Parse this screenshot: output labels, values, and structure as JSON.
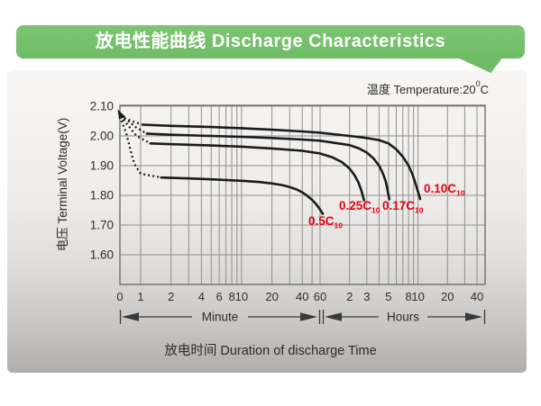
{
  "header": {
    "title": "放电性能曲线 Discharge Characteristics",
    "banner_color": "#70bc66"
  },
  "chart": {
    "temperature_prefix": "温度 Temperature:20",
    "temperature_degree": "0",
    "temperature_unit": "C",
    "y_axis_title": "电压 Terminal Voltage(V)",
    "x_axis_title": "放电时间 Duration of discharge Time",
    "minute_label": "Minute",
    "hours_label": "Hours"
  },
  "chart_data": {
    "type": "line",
    "title": "放电性能曲线 Discharge Characteristics",
    "temperature": "20°C",
    "xlabel": "放电时间 Duration of discharge Time (log time axis: minutes 1-60, then hours 2-40)",
    "ylabel": "电压 Terminal Voltage(V)",
    "y_range": [
      1.5,
      2.1
    ],
    "grid": true,
    "grid_color": "#8f8f8f",
    "border_color": "#6f6f6f",
    "curve_color": "#1b1b1b",
    "label_color": "#e60012",
    "tick_color": "#2f2f2f",
    "y_ticks": [
      {
        "label": "2.10",
        "v": 2.1
      },
      {
        "label": "2.00",
        "v": 2.0
      },
      {
        "label": "1.90",
        "v": 1.9
      },
      {
        "label": "1.80",
        "v": 1.8
      },
      {
        "label": "1.70",
        "v": 1.7
      },
      {
        "label": "1.60",
        "v": 1.6
      }
    ],
    "x_ticks_minutes": [
      {
        "label": "0",
        "t": 0
      },
      {
        "label": "1",
        "t": 1
      },
      {
        "label": "2",
        "t": 2
      },
      {
        "label": "4",
        "t": 4
      },
      {
        "label": "6",
        "t": 6
      },
      {
        "label": "8",
        "t": 8
      },
      {
        "label": "10",
        "t": 10
      },
      {
        "label": "20",
        "t": 20
      },
      {
        "label": "40",
        "t": 40
      },
      {
        "label": "60",
        "t": 60
      }
    ],
    "x_ticks_hours": [
      {
        "label": "2",
        "t": 120
      },
      {
        "label": "3",
        "t": 180
      },
      {
        "label": "5",
        "t": 300
      },
      {
        "label": "8",
        "t": 480
      },
      {
        "label": "10",
        "t": 600
      },
      {
        "label": "20",
        "t": 1200
      },
      {
        "label": "40",
        "t": 2400
      }
    ],
    "x_minor_t": [
      3,
      5,
      7,
      9,
      30,
      50,
      240,
      360,
      420,
      540,
      1800
    ],
    "series": [
      {
        "name": "0.10C10",
        "label_base": "0.10C",
        "label_sub": "10",
        "label_xy": [
          470,
          214
        ],
        "dotted": [
          [
            0,
            2.066
          ],
          [
            0.35,
            2.056
          ],
          [
            0.7,
            2.047
          ],
          [
            1.05,
            2.038
          ]
        ],
        "points": [
          [
            1.05,
            2.038
          ],
          [
            2,
            2.034
          ],
          [
            5,
            2.03
          ],
          [
            10,
            2.026
          ],
          [
            20,
            2.021
          ],
          [
            40,
            2.015
          ],
          [
            60,
            2.011
          ],
          [
            120,
            2.0
          ],
          [
            180,
            1.993
          ],
          [
            240,
            1.986
          ],
          [
            300,
            1.975
          ],
          [
            360,
            1.955
          ],
          [
            420,
            1.93
          ],
          [
            480,
            1.9
          ],
          [
            520,
            1.875
          ],
          [
            560,
            1.845
          ],
          [
            590,
            1.82
          ],
          [
            615,
            1.8
          ],
          [
            630,
            1.788
          ]
        ]
      },
      {
        "name": "0.17C10",
        "label_base": "0.17C",
        "label_sub": "10",
        "label_xy": [
          424,
          233
        ],
        "dotted": [
          [
            0,
            2.066
          ],
          [
            0.4,
            2.05
          ],
          [
            0.8,
            2.028
          ],
          [
            1.15,
            2.008
          ]
        ],
        "points": [
          [
            1.15,
            2.008
          ],
          [
            2,
            2.004
          ],
          [
            5,
            2.0
          ],
          [
            10,
            1.997
          ],
          [
            20,
            1.993
          ],
          [
            40,
            1.988
          ],
          [
            60,
            1.984
          ],
          [
            120,
            1.969
          ],
          [
            150,
            1.958
          ],
          [
            180,
            1.944
          ],
          [
            210,
            1.925
          ],
          [
            240,
            1.9
          ],
          [
            262,
            1.875
          ],
          [
            280,
            1.848
          ],
          [
            292,
            1.822
          ],
          [
            300,
            1.8
          ],
          [
            306,
            1.787
          ]
        ]
      },
      {
        "name": "0.25C10",
        "label_base": "0.25C",
        "label_sub": "10",
        "label_xy": [
          376,
          233
        ],
        "dotted": [
          [
            0,
            2.066
          ],
          [
            0.4,
            2.035
          ],
          [
            0.8,
            2.0
          ],
          [
            1.25,
            1.975
          ]
        ],
        "points": [
          [
            1.25,
            1.975
          ],
          [
            2,
            1.972
          ],
          [
            5,
            1.968
          ],
          [
            10,
            1.964
          ],
          [
            20,
            1.958
          ],
          [
            40,
            1.95
          ],
          [
            60,
            1.941
          ],
          [
            80,
            1.928
          ],
          [
            100,
            1.912
          ],
          [
            120,
            1.89
          ],
          [
            135,
            1.868
          ],
          [
            148,
            1.843
          ],
          [
            158,
            1.817
          ],
          [
            165,
            1.795
          ],
          [
            169,
            1.783
          ]
        ]
      },
      {
        "name": "0.5C10",
        "label_base": "0.5C",
        "label_sub": "10",
        "label_xy": [
          342,
          250
        ],
        "dotted": [
          [
            0,
            2.066
          ],
          [
            0.3,
            2.01
          ],
          [
            0.5,
            1.955
          ],
          [
            0.7,
            1.905
          ],
          [
            1.0,
            1.873
          ],
          [
            1.6,
            1.86
          ]
        ],
        "points": [
          [
            1.6,
            1.86
          ],
          [
            3,
            1.857
          ],
          [
            5,
            1.854
          ],
          [
            10,
            1.849
          ],
          [
            15,
            1.845
          ],
          [
            20,
            1.84
          ],
          [
            25,
            1.835
          ],
          [
            30,
            1.828
          ],
          [
            35,
            1.82
          ],
          [
            40,
            1.81
          ],
          [
            45,
            1.798
          ],
          [
            50,
            1.785
          ],
          [
            55,
            1.77
          ],
          [
            60,
            1.752
          ],
          [
            64,
            1.738
          ]
        ]
      }
    ]
  }
}
